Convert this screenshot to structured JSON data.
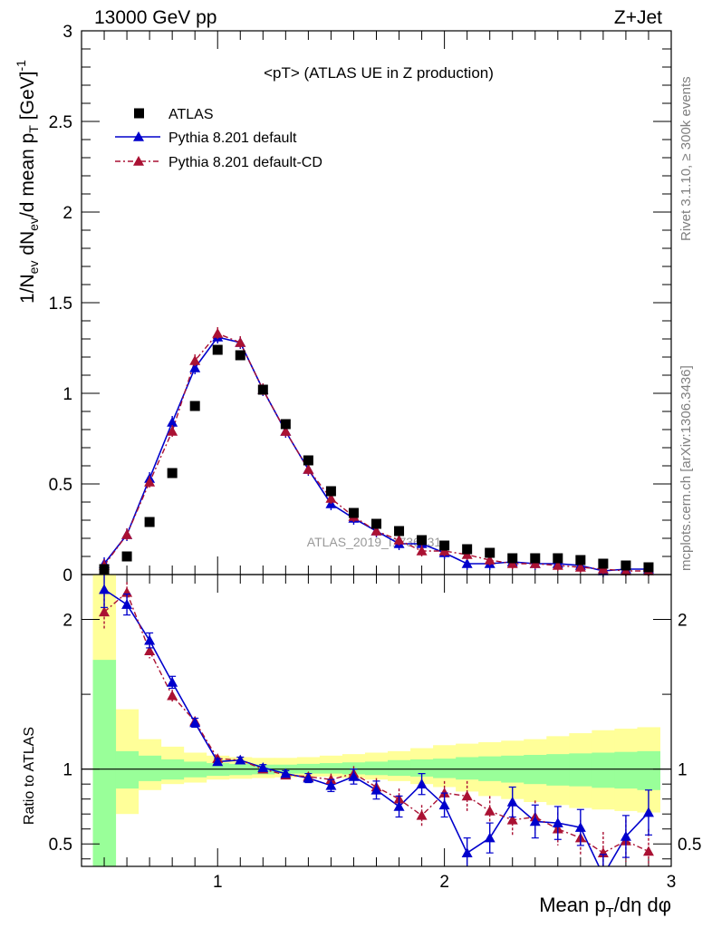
{
  "header": {
    "energy_label": "13000 GeV pp",
    "process_label": "Z+Jet"
  },
  "side_labels": {
    "rivet": "Rivet 3.1.10, ≥ 300k events",
    "mcplots": "mcplots.cern.ch [arXiv:1306.3436]"
  },
  "watermark": "ATLAS_2019_I1736531",
  "colors": {
    "atlas": "#000000",
    "default": "#0000cc",
    "default_cd": "#aa1133",
    "band_inner": "#99ff99",
    "band_outer": "#ffff99"
  },
  "chart_data": [
    {
      "type": "scatter",
      "title": "<pT> (ATLAS UE in Z production)",
      "ylabel": "1/N_ev dN_ev/d mean p_T [GeV]^-1",
      "xlim": [
        0.4,
        3.0
      ],
      "ylim": [
        0,
        3
      ],
      "yticks": [
        "0",
        "0.5",
        "1",
        "1.5",
        "2",
        "2.5",
        "3"
      ],
      "legend_position": "top-left",
      "x": [
        0.5,
        0.6,
        0.7,
        0.8,
        0.9,
        1.0,
        1.1,
        1.2,
        1.3,
        1.4,
        1.5,
        1.6,
        1.7,
        1.8,
        1.9,
        2.0,
        2.1,
        2.2,
        2.3,
        2.4,
        2.5,
        2.6,
        2.7,
        2.8,
        2.9
      ],
      "series": [
        {
          "name": "ATLAS",
          "marker": "square",
          "values": [
            0.03,
            0.1,
            0.29,
            0.56,
            0.93,
            1.24,
            1.21,
            1.02,
            0.83,
            0.63,
            0.46,
            0.34,
            0.28,
            0.24,
            0.19,
            0.16,
            0.14,
            0.12,
            0.09,
            0.09,
            0.09,
            0.08,
            0.06,
            0.05,
            0.04
          ]
        },
        {
          "name": "Pythia 8.201 default",
          "marker": "triangle",
          "line": "solid",
          "values": [
            0.06,
            0.22,
            0.53,
            0.84,
            1.14,
            1.31,
            1.28,
            1.02,
            0.79,
            0.58,
            0.39,
            0.31,
            0.24,
            0.17,
            0.17,
            0.12,
            0.06,
            0.06,
            0.07,
            0.06,
            0.06,
            0.05,
            0.02,
            0.03,
            0.03
          ]
        },
        {
          "name": "Pythia 8.201 default-CD",
          "marker": "triangle",
          "line": "dashdot",
          "values": [
            0.05,
            0.22,
            0.51,
            0.79,
            1.18,
            1.33,
            1.28,
            1.02,
            0.79,
            0.58,
            0.42,
            0.32,
            0.24,
            0.19,
            0.13,
            0.13,
            0.11,
            0.08,
            0.06,
            0.06,
            0.05,
            0.04,
            0.03,
            0.02,
            0.02
          ]
        }
      ]
    },
    {
      "type": "line",
      "ylabel": "Ratio to ATLAS",
      "xlabel": "Mean p_T/dη dφ",
      "xlim": [
        0.4,
        3.0
      ],
      "ylim": [
        0.35,
        2.3
      ],
      "xticks": [
        "1",
        "2",
        "3"
      ],
      "yticks": [
        "0.5",
        "1",
        "2"
      ],
      "x": [
        0.5,
        0.6,
        0.7,
        0.8,
        0.9,
        1.0,
        1.1,
        1.2,
        1.3,
        1.4,
        1.5,
        1.6,
        1.7,
        1.8,
        1.9,
        2.0,
        2.1,
        2.2,
        2.3,
        2.4,
        2.5,
        2.6,
        2.7,
        2.8,
        2.9
      ],
      "series": [
        {
          "name": "Pythia 8.201 default",
          "values": [
            2.2,
            2.1,
            1.86,
            1.58,
            1.31,
            1.05,
            1.06,
            1.01,
            0.97,
            0.94,
            0.89,
            0.95,
            0.86,
            0.75,
            0.9,
            0.76,
            0.44,
            0.54,
            0.78,
            0.65,
            0.64,
            0.61,
            0.29,
            0.55,
            0.71
          ],
          "errors": [
            0.12,
            0.07,
            0.05,
            0.04,
            0.03,
            0.02,
            0.02,
            0.02,
            0.02,
            0.03,
            0.04,
            0.05,
            0.06,
            0.07,
            0.07,
            0.08,
            0.1,
            0.1,
            0.1,
            0.11,
            0.11,
            0.12,
            0.14,
            0.14,
            0.15
          ]
        },
        {
          "name": "Pythia 8.201 default-CD",
          "values": [
            2.05,
            2.18,
            1.79,
            1.49,
            1.32,
            1.07,
            1.06,
            1.0,
            0.96,
            0.95,
            0.93,
            0.97,
            0.88,
            0.8,
            0.69,
            0.84,
            0.82,
            0.72,
            0.66,
            0.68,
            0.6,
            0.54,
            0.44,
            0.52,
            0.45
          ],
          "errors": [
            0.12,
            0.07,
            0.05,
            0.04,
            0.03,
            0.02,
            0.02,
            0.02,
            0.02,
            0.03,
            0.04,
            0.05,
            0.06,
            0.07,
            0.07,
            0.08,
            0.1,
            0.1,
            0.1,
            0.11,
            0.11,
            0.12,
            0.14,
            0.14,
            0.15
          ]
        }
      ],
      "bands": {
        "x_edges": [
          0.45,
          0.55,
          0.65,
          0.75,
          0.85,
          0.95,
          1.05,
          1.15,
          1.25,
          1.35,
          1.45,
          1.55,
          1.65,
          1.75,
          1.85,
          1.95,
          2.05,
          2.15,
          2.25,
          2.35,
          2.45,
          2.55,
          2.65,
          2.75,
          2.85,
          2.95
        ],
        "inner_lo": [
          0.3,
          0.87,
          0.92,
          0.93,
          0.945,
          0.955,
          0.96,
          0.965,
          0.97,
          0.97,
          0.97,
          0.965,
          0.96,
          0.955,
          0.95,
          0.94,
          0.93,
          0.92,
          0.91,
          0.9,
          0.89,
          0.885,
          0.875,
          0.87,
          0.86
        ],
        "inner_hi": [
          1.73,
          1.12,
          1.09,
          1.065,
          1.05,
          1.04,
          1.035,
          1.03,
          1.03,
          1.035,
          1.04,
          1.045,
          1.05,
          1.06,
          1.065,
          1.07,
          1.08,
          1.085,
          1.09,
          1.095,
          1.1,
          1.105,
          1.11,
          1.115,
          1.12
        ],
        "outer_lo": [
          0.3,
          0.7,
          0.86,
          0.9,
          0.91,
          0.93,
          0.935,
          0.94,
          0.945,
          0.95,
          0.95,
          0.94,
          0.93,
          0.92,
          0.9,
          0.88,
          0.85,
          0.82,
          0.8,
          0.78,
          0.76,
          0.74,
          0.73,
          0.72,
          0.71
        ],
        "outer_hi": [
          2.3,
          1.4,
          1.2,
          1.15,
          1.11,
          1.09,
          1.08,
          1.075,
          1.075,
          1.08,
          1.09,
          1.1,
          1.11,
          1.12,
          1.14,
          1.16,
          1.17,
          1.18,
          1.19,
          1.2,
          1.22,
          1.24,
          1.26,
          1.27,
          1.28
        ]
      }
    }
  ]
}
